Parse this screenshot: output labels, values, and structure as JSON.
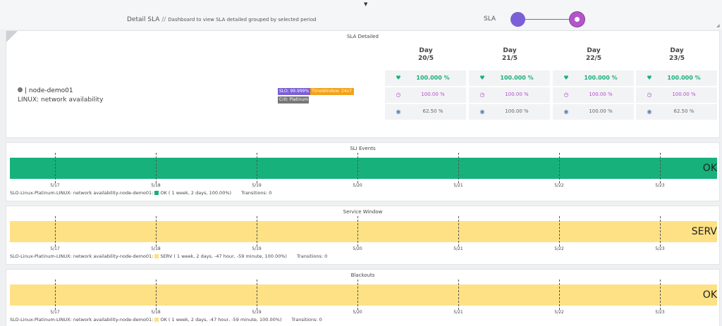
{
  "header": {
    "title": "Detail SLA",
    "separator": "//",
    "subtitle": "Dashboard to view SLA detailed grouped by selected period",
    "sla_label": "SLA",
    "collapse_icon": "caret-down-icon"
  },
  "sla_panel": {
    "title": "SLA Detailed",
    "node_name": "node-demo01",
    "node_prefix": "|",
    "node_description": "LINUX: network availability",
    "tag_slo": "SLO: 99.999%",
    "tag_timewindow": "TimeWindow: 24x7",
    "tag_crit": "Crit: Platinum",
    "days": [
      {
        "label": "Day",
        "date": "20/5",
        "sla": "100.000 %",
        "clock": "100.00 %",
        "eye": "62.50 %"
      },
      {
        "label": "Day",
        "date": "21/5",
        "sla": "100.000 %",
        "clock": "100.00 %",
        "eye": "100.00 %"
      },
      {
        "label": "Day",
        "date": "22/5",
        "sla": "100.000 %",
        "clock": "100.00 %",
        "eye": "100.00 %"
      },
      {
        "label": "Day",
        "date": "23/5",
        "sla": "100.000 %",
        "clock": "100.00 %",
        "eye": "62.50 %"
      }
    ]
  },
  "timelines": [
    {
      "title": "SLI Events",
      "state": "OK",
      "color": "#17b17c",
      "legend_prefix": "SLO-Linux-Platinum-LINUX: network availability-node-demo01:",
      "legend_item": "OK ( 1 week, 2 days, 100.00%)",
      "transitions": "Transitions: 0"
    },
    {
      "title": "Service Window",
      "state": "SERV",
      "color": "#fde184",
      "legend_prefix": "SLO-Linux-Platinum-LINUX: network availability-node-demo01:",
      "legend_item": "SERV ( 1 week, 2 days, -47 hour, -59 minute, 100.00%)",
      "transitions": "Transitions: 0"
    },
    {
      "title": "Blackouts",
      "state": "OK",
      "color": "#fde184",
      "legend_prefix": "SLO-Linux-Platinum-LINUX: network availability-node-demo01:",
      "legend_item": "OK ( 1 week, 2 days, -47 hour, -59 minute, 100.00%)",
      "transitions": "Transitions: 0"
    }
  ],
  "ticks": [
    "5/17",
    "5/18",
    "5/19",
    "5/20",
    "5/21",
    "5/22",
    "5/23"
  ],
  "colors": {
    "sla_green": "#18b07b",
    "clock_purple": "#b34ed0",
    "eye_blue": "#5a7fb5"
  }
}
